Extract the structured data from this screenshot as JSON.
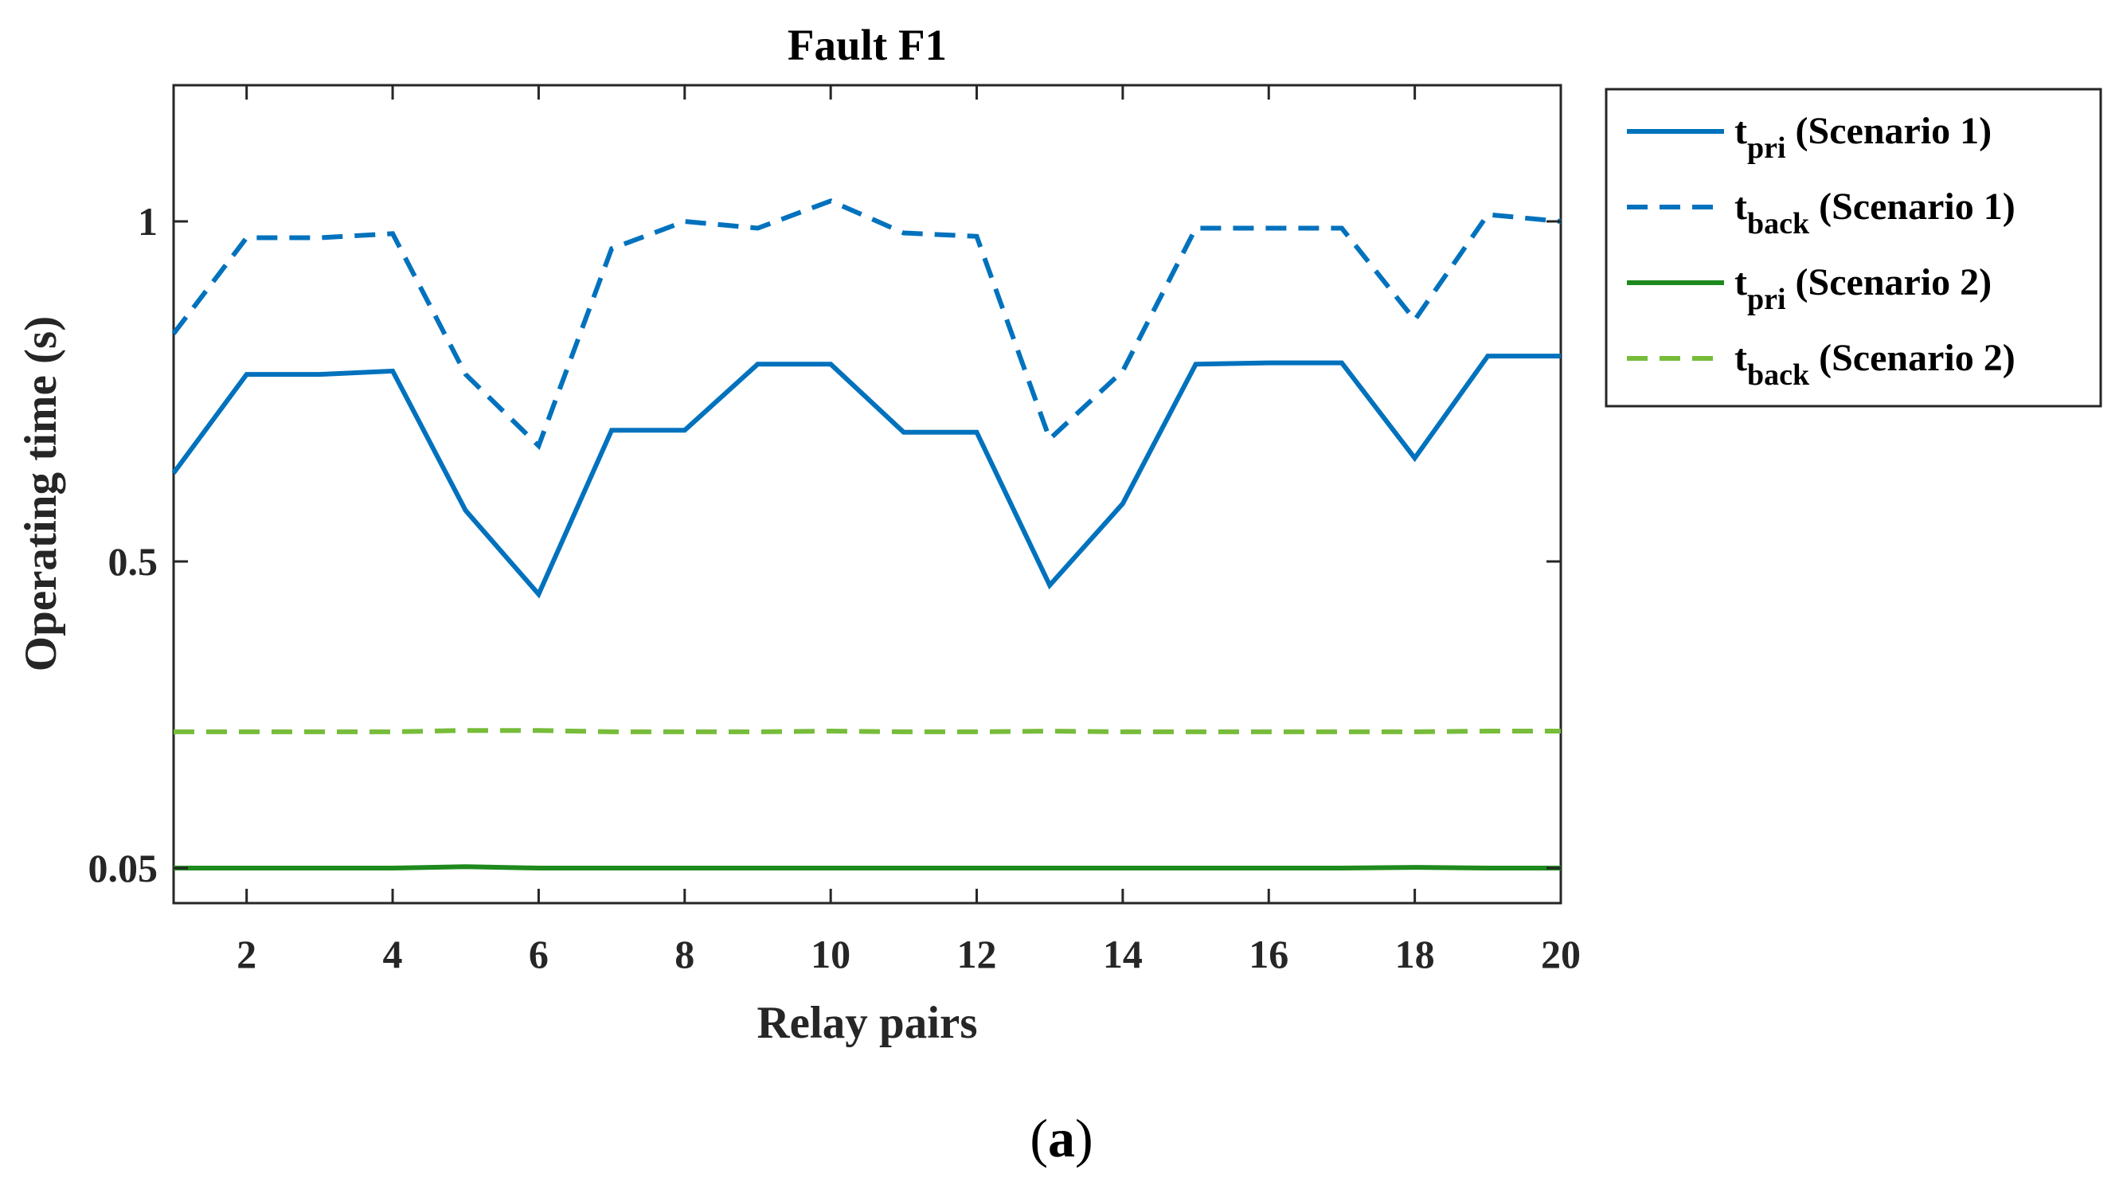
{
  "chart_data": {
    "type": "line",
    "title": "Fault F1",
    "xlabel": "Relay pairs",
    "ylabel": "Operating time (s)",
    "xlim": [
      1,
      20
    ],
    "xticks": [
      "2",
      "4",
      "6",
      "8",
      "10",
      "12",
      "14",
      "16",
      "18",
      "20"
    ],
    "ylim": [
      0.0,
      1.2
    ],
    "yaxis_note": "axis is non-linear: ticks labeled 0.05, 0.5, 1",
    "yticks": [
      "0.05",
      "0.5",
      "1"
    ],
    "x": [
      1,
      2,
      3,
      4,
      5,
      6,
      7,
      8,
      9,
      10,
      11,
      12,
      13,
      14,
      15,
      16,
      17,
      18,
      19,
      20
    ],
    "series": [
      {
        "name_main": "t",
        "name_sub": "pri",
        "name_rest": " (Scenario 1)",
        "color": "#0072BD",
        "dash": "solid",
        "values": [
          0.63,
          0.775,
          0.775,
          0.78,
          0.575,
          0.452,
          0.693,
          0.693,
          0.79,
          0.79,
          0.69,
          0.69,
          0.465,
          0.585,
          0.79,
          0.792,
          0.792,
          0.652,
          0.802,
          0.802
        ]
      },
      {
        "name_main": "t",
        "name_sub": "back",
        "name_rest": " (Scenario 1)",
        "color": "#0072BD",
        "dash": "dashed",
        "values": [
          0.835,
          0.976,
          0.976,
          0.982,
          0.775,
          0.67,
          0.96,
          1.0,
          0.99,
          1.03,
          0.983,
          0.978,
          0.68,
          0.78,
          0.99,
          0.99,
          0.99,
          0.855,
          1.01,
          1.0
        ]
      },
      {
        "name_main": "t",
        "name_sub": "pri",
        "name_rest": " (Scenario 2)",
        "color": "#1E8A1E",
        "dash": "solid",
        "values": [
          0.05,
          0.05,
          0.05,
          0.05,
          0.052,
          0.05,
          0.05,
          0.05,
          0.05,
          0.05,
          0.05,
          0.05,
          0.05,
          0.05,
          0.05,
          0.05,
          0.05,
          0.051,
          0.05,
          0.05
        ]
      },
      {
        "name_main": "t",
        "name_sub": "back",
        "name_rest": " (Scenario 2)",
        "color": "#77BC3A",
        "dash": "dashed",
        "values": [
          0.25,
          0.25,
          0.25,
          0.25,
          0.252,
          0.252,
          0.25,
          0.25,
          0.25,
          0.251,
          0.25,
          0.25,
          0.251,
          0.25,
          0.25,
          0.25,
          0.25,
          0.25,
          0.251,
          0.251
        ]
      }
    ],
    "legend": "outside-top-right",
    "grid": false
  },
  "caption": {
    "open": "(",
    "letter": "a",
    "close": ")"
  }
}
